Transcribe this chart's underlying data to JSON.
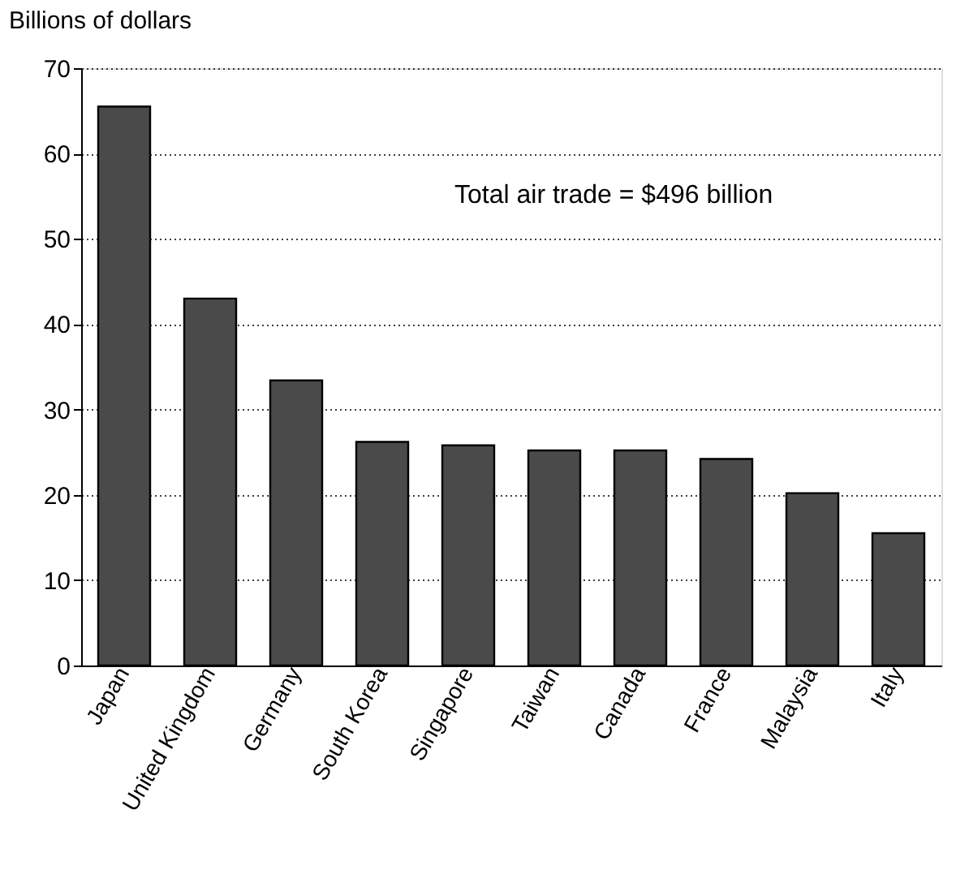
{
  "chart_data": {
    "type": "bar",
    "ylabel": "Billions of dollars",
    "categories": [
      "Japan",
      "United Kingdom",
      "Germany",
      "South Korea",
      "Singapore",
      "Taiwan",
      "Canada",
      "France",
      "Malaysia",
      "Italy"
    ],
    "values": [
      65.5,
      43,
      33.4,
      26.2,
      25.8,
      25.2,
      25.2,
      24.2,
      20.2,
      15.5
    ],
    "color": "#4a4a4a",
    "ylim": [
      0,
      70
    ],
    "yticks": [
      0,
      10,
      20,
      30,
      40,
      50,
      60,
      70
    ],
    "grid": "y",
    "annotations": [
      "Total air trade = $496 billion"
    ]
  }
}
